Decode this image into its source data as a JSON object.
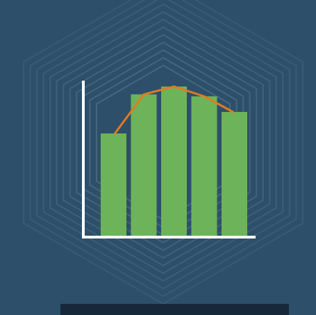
{
  "colors": {
    "background": "#2d4f6a",
    "hexagon_outline": "#4b6f89",
    "axis": "#ffffff",
    "bar": "#6db35a",
    "line": "#e07b1f",
    "bottom_bar": "#16293a"
  },
  "chart_data": {
    "type": "bar",
    "categories": [
      "",
      "",
      "",
      "",
      ""
    ],
    "series": [
      {
        "values": [
          53,
          73,
          77,
          72,
          64
        ],
        "kind": "bar"
      },
      {
        "values": [
          53,
          73,
          77,
          72,
          64
        ],
        "kind": "line"
      }
    ],
    "title": "",
    "xlabel": "",
    "ylabel": "",
    "ylim": [
      0,
      80
    ],
    "grid": false,
    "legend": "none",
    "decoration": "concentric-hexagon-outlines"
  }
}
